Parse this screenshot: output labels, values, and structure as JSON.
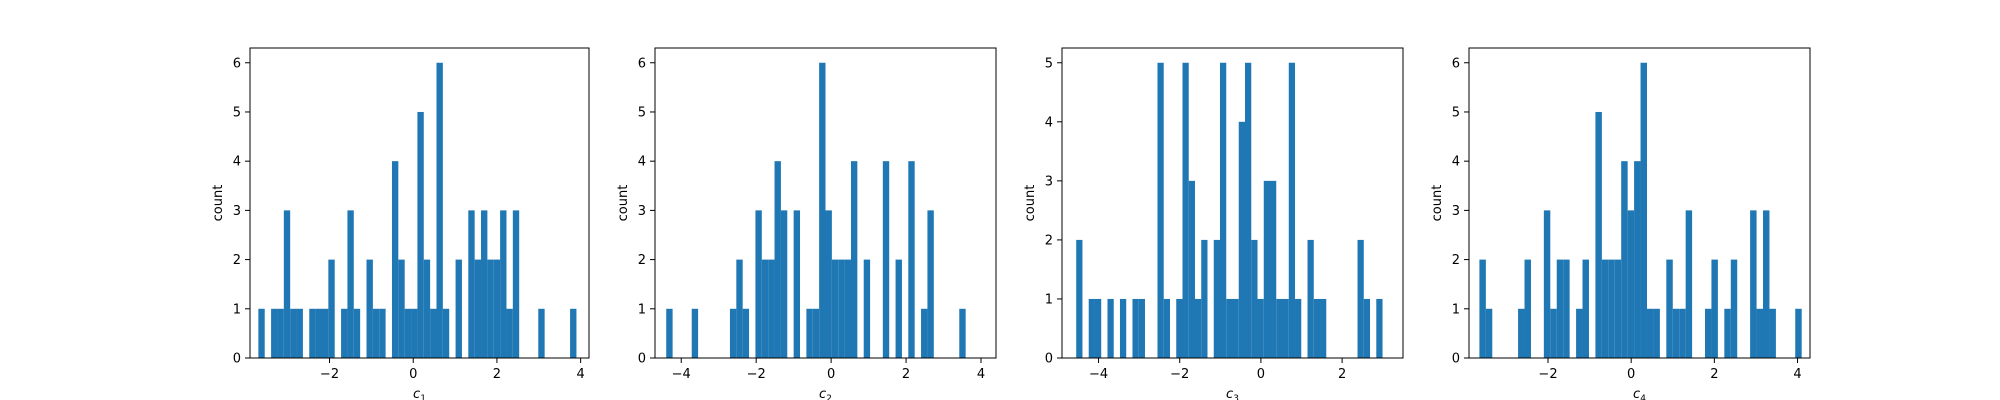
{
  "chart_data": [
    {
      "type": "bar",
      "xlabel": "c",
      "xlabel_sub": "1",
      "ylabel": "count",
      "xlim": [
        -3.9,
        4.2
      ],
      "ylim": [
        0,
        6.3
      ],
      "xticks": [
        -2,
        0,
        2,
        4
      ],
      "yticks": [
        0,
        1,
        2,
        3,
        4,
        5,
        6
      ],
      "color": "#1f77b4",
      "bin_start": -3.7,
      "bin_width": 0.152,
      "counts": [
        1,
        0,
        1,
        1,
        3,
        1,
        1,
        0,
        1,
        1,
        1,
        2,
        0,
        1,
        3,
        1,
        0,
        2,
        1,
        1,
        0,
        4,
        2,
        1,
        1,
        5,
        2,
        1,
        6,
        1,
        0,
        2,
        0,
        3,
        2,
        3,
        2,
        2,
        3,
        1,
        3,
        0,
        0,
        0,
        1,
        0,
        0,
        0,
        0,
        1
      ]
    },
    {
      "type": "bar",
      "xlabel": "c",
      "xlabel_sub": "2",
      "ylabel": "count",
      "xlim": [
        -4.7,
        4.4
      ],
      "ylim": [
        0,
        6.3
      ],
      "xticks": [
        -4,
        -2,
        0,
        2,
        4
      ],
      "yticks": [
        0,
        1,
        2,
        3,
        4,
        5,
        6
      ],
      "color": "#1f77b4",
      "bin_start": -4.4,
      "bin_width": 0.17,
      "counts": [
        1,
        0,
        0,
        0,
        1,
        0,
        0,
        0,
        0,
        0,
        1,
        2,
        1,
        0,
        3,
        2,
        2,
        4,
        3,
        0,
        3,
        0,
        1,
        1,
        6,
        3,
        2,
        2,
        2,
        4,
        0,
        2,
        0,
        0,
        4,
        0,
        2,
        0,
        4,
        0,
        1,
        3,
        0,
        0,
        0,
        0,
        1,
        0,
        0,
        0
      ]
    },
    {
      "type": "bar",
      "xlabel": "c",
      "xlabel_sub": "3",
      "ylabel": "count",
      "xlim": [
        -4.9,
        3.5
      ],
      "ylim": [
        0,
        5.25
      ],
      "xticks": [
        -4,
        -2,
        0,
        2
      ],
      "yticks": [
        0,
        1,
        2,
        3,
        4,
        5
      ],
      "color": "#1f77b4",
      "bin_start": -4.55,
      "bin_width": 0.154,
      "counts": [
        2,
        0,
        1,
        1,
        0,
        1,
        0,
        1,
        0,
        1,
        1,
        0,
        0,
        5,
        1,
        0,
        1,
        5,
        3,
        1,
        2,
        0,
        2,
        5,
        1,
        1,
        4,
        5,
        2,
        1,
        3,
        3,
        1,
        1,
        5,
        1,
        0,
        2,
        1,
        1,
        0,
        0,
        0,
        0,
        0,
        2,
        1,
        0,
        1,
        0
      ]
    },
    {
      "type": "bar",
      "xlabel": "c",
      "xlabel_sub": "4",
      "ylabel": "count",
      "xlim": [
        -3.9,
        4.3
      ],
      "ylim": [
        0,
        6.3
      ],
      "xticks": [
        -2,
        0,
        2,
        4
      ],
      "yticks": [
        0,
        1,
        2,
        3,
        4,
        5,
        6
      ],
      "color": "#1f77b4",
      "bin_start": -3.65,
      "bin_width": 0.155,
      "counts": [
        2,
        1,
        0,
        0,
        0,
        0,
        1,
        2,
        0,
        0,
        3,
        1,
        2,
        2,
        0,
        1,
        2,
        0,
        5,
        2,
        2,
        2,
        4,
        3,
        4,
        6,
        1,
        1,
        0,
        2,
        1,
        1,
        3,
        0,
        0,
        1,
        2,
        0,
        1,
        2,
        0,
        0,
        3,
        1,
        3,
        1,
        0,
        0,
        0,
        1
      ]
    }
  ]
}
